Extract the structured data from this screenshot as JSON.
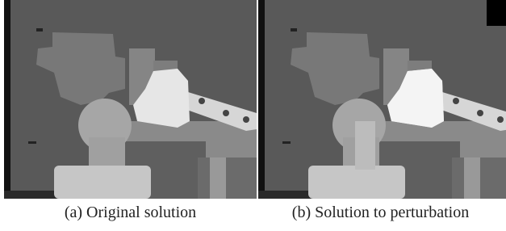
{
  "figures": [
    {
      "caption": "(a) Original solution"
    },
    {
      "caption": "(b) Solution to perturbation"
    }
  ]
}
